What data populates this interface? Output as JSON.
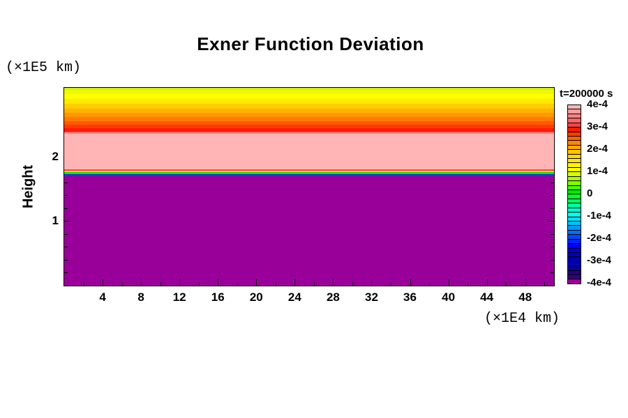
{
  "chart_data": {
    "type": "filled_contour",
    "title": "Exner Function Deviation",
    "time_annotation": "t=200000 s",
    "ylabel": "Height",
    "ylabel_unit": "(×1E5 km)",
    "xlabel_unit": "(×1E4 km)",
    "x_range": [
      0,
      51
    ],
    "y_range": [
      0,
      3.065
    ],
    "x_major_ticks": [
      4,
      8,
      12,
      16,
      20,
      24,
      28,
      32,
      36,
      40,
      44,
      48
    ],
    "x_minor_ticks": [
      2,
      6,
      10,
      14,
      18,
      22,
      26,
      30,
      34,
      38,
      42,
      46,
      50
    ],
    "x_tick_labels": [
      "4",
      "8",
      "12",
      "16",
      "20",
      "24",
      "28",
      "32",
      "36",
      "40",
      "44",
      "48"
    ],
    "y_major_ticks": [
      1.0
    ],
    "y_minor_ticks": [
      0.2,
      0.4,
      0.6,
      0.8,
      1.2,
      1.4,
      1.6
    ],
    "y_tick_labels": [
      {
        "text": "1",
        "value": 1.0
      },
      {
        "text": "2",
        "value": 2.0
      }
    ],
    "grid": false,
    "legend_position": "right-colorbar",
    "field_description": "Horizontally uniform Exner function deviation: lower layer (height 0 to ~1.72×1E5 km) at or below -3.8e-4 (purple); sharp interface passing through all contour levels near height 1.72-1.80×1E5 km; upper layer near +3.8e-4..4e-4 (pink) from ~1.80 to ~2.35×1E5 km, decreasing smoothly to ~+0.9e-4 (yellow-green) at the domain top ~3.06×1E5 km",
    "profile_bands": [
      {
        "top": 3.065,
        "bottom": 3.03,
        "color": "#D2F000",
        "value": "~0.9e-4"
      },
      {
        "top": 3.03,
        "bottom": 2.97,
        "color": "#EEFB00",
        "value": "~1.0e-4"
      },
      {
        "top": 2.97,
        "bottom": 2.89,
        "color": "#FFFF00",
        "value": "~1.1e-4"
      },
      {
        "top": 2.89,
        "bottom": 2.82,
        "color": "#FFE900",
        "value": "~1.3e-4"
      },
      {
        "top": 2.82,
        "bottom": 2.74,
        "color": "#FFCE00",
        "value": "~1.6e-4"
      },
      {
        "top": 2.74,
        "bottom": 2.68,
        "color": "#FFB200",
        "value": "~1.9e-4"
      },
      {
        "top": 2.68,
        "bottom": 2.61,
        "color": "#FF9600",
        "value": "~2.1e-4"
      },
      {
        "top": 2.61,
        "bottom": 2.55,
        "color": "#FF7A00",
        "value": "~2.4e-4"
      },
      {
        "top": 2.55,
        "bottom": 2.49,
        "color": "#FF5A00",
        "value": "~2.6e-4"
      },
      {
        "top": 2.49,
        "bottom": 2.44,
        "color": "#FF3A00",
        "value": "~2.8e-4"
      },
      {
        "top": 2.44,
        "bottom": 2.39,
        "color": "#FF1A00",
        "value": "~3.0e-4"
      },
      {
        "top": 2.39,
        "bottom": 2.37,
        "color": "#FF4848",
        "value": "~3.3e-4"
      },
      {
        "top": 2.37,
        "bottom": 2.35,
        "color": "#FF8A8A",
        "value": "~3.6e-4"
      },
      {
        "top": 2.35,
        "bottom": 1.8,
        "color": "#FFB5B5",
        "value": "~3.8e-4 to 4e-4 (max)"
      },
      {
        "top": 1.8,
        "bottom": 1.78,
        "color": "#FF5050",
        "value": "~3e-4"
      },
      {
        "top": 1.78,
        "bottom": 1.77,
        "color": "#FF8C00",
        "value": "~2e-4"
      },
      {
        "top": 1.77,
        "bottom": 1.76,
        "color": "#FFFF00",
        "value": "~1e-4"
      },
      {
        "top": 1.76,
        "bottom": 1.74,
        "color": "#00E000",
        "value": "~0"
      },
      {
        "top": 1.74,
        "bottom": 1.73,
        "color": "#00C8FF",
        "value": "~-1.5e-4"
      },
      {
        "top": 1.73,
        "bottom": 1.72,
        "color": "#0030D8",
        "value": "~-2.5e-4"
      },
      {
        "top": 1.72,
        "bottom": 0.0,
        "color": "#990099",
        "value": "<= -3.8e-4 (min)"
      }
    ],
    "colorbar": {
      "value_range": [
        -0.0004,
        0.0004
      ],
      "labels": [
        "4e-4",
        "3e-4",
        "2e-4",
        "1e-4",
        "0",
        "-1e-4",
        "-2e-4",
        "-3e-4",
        "-4e-4"
      ],
      "segments_per_label_interval": 5,
      "segment_colors_top_to_bottom": [
        "#FFB5B5",
        "#FF9C9C",
        "#FF8282",
        "#FF6565",
        "#FF4444",
        "#FF1A00",
        "#FF3E00",
        "#FF6200",
        "#FF8600",
        "#FFAA00",
        "#FFC300",
        "#FFD700",
        "#FFE500",
        "#FFF300",
        "#FFFF00",
        "#D4FF00",
        "#A8FF00",
        "#7CFF00",
        "#44FF00",
        "#00E800",
        "#00FF30",
        "#00FF66",
        "#00FF9C",
        "#00FFD2",
        "#00FFF4",
        "#00E0FF",
        "#00BEFF",
        "#0098FF",
        "#0070FF",
        "#0048FF",
        "#0024FF",
        "#0000FF",
        "#0000E0",
        "#0000C4",
        "#0000A8",
        "#0000B4",
        "#0A0096",
        "#220080",
        "#3C006E",
        "#990099"
      ]
    },
    "colors": {
      "background": "#FFFFFF",
      "axis": "#000000",
      "upper_layer_pink": "#FFB5B5",
      "lower_layer_purple": "#990099"
    }
  }
}
